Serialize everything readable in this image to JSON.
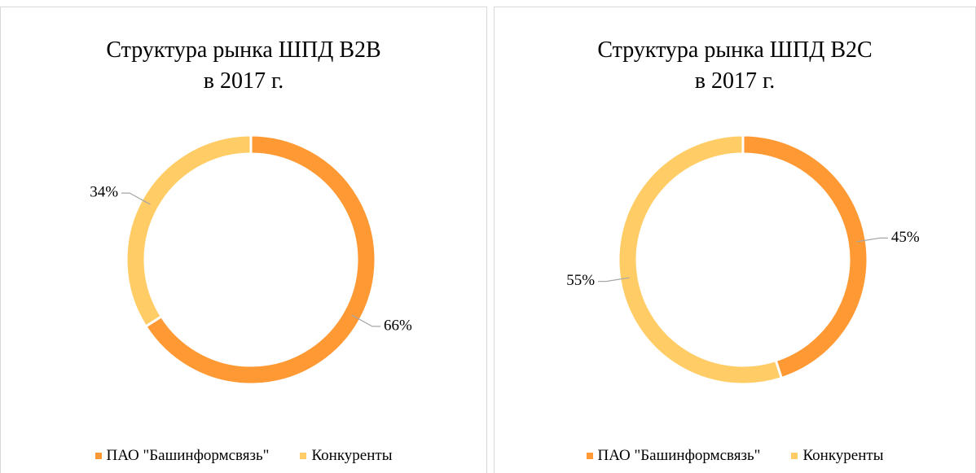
{
  "chart_data": [
    {
      "type": "pie",
      "title": "Структура рынка ШПД В2В\nв 2017 г.",
      "categories": [
        "ПАО \"Башинформсвязь\"",
        "Конкуренты"
      ],
      "values": [
        66,
        34
      ],
      "value_labels": [
        "66%",
        "34%"
      ],
      "colors": [
        "#ff9933",
        "#ffcc66"
      ],
      "donut": true,
      "legend": "bottom"
    },
    {
      "type": "pie",
      "title": "Структура рынка ШПД  В2С\nв 2017 г.",
      "categories": [
        "ПАО \"Башинформсвязь\"",
        "Конкуренты"
      ],
      "values": [
        45,
        55
      ],
      "value_labels": [
        "45%",
        "55%"
      ],
      "colors": [
        "#ff9933",
        "#ffcc66"
      ],
      "donut": true,
      "legend": "bottom"
    }
  ]
}
